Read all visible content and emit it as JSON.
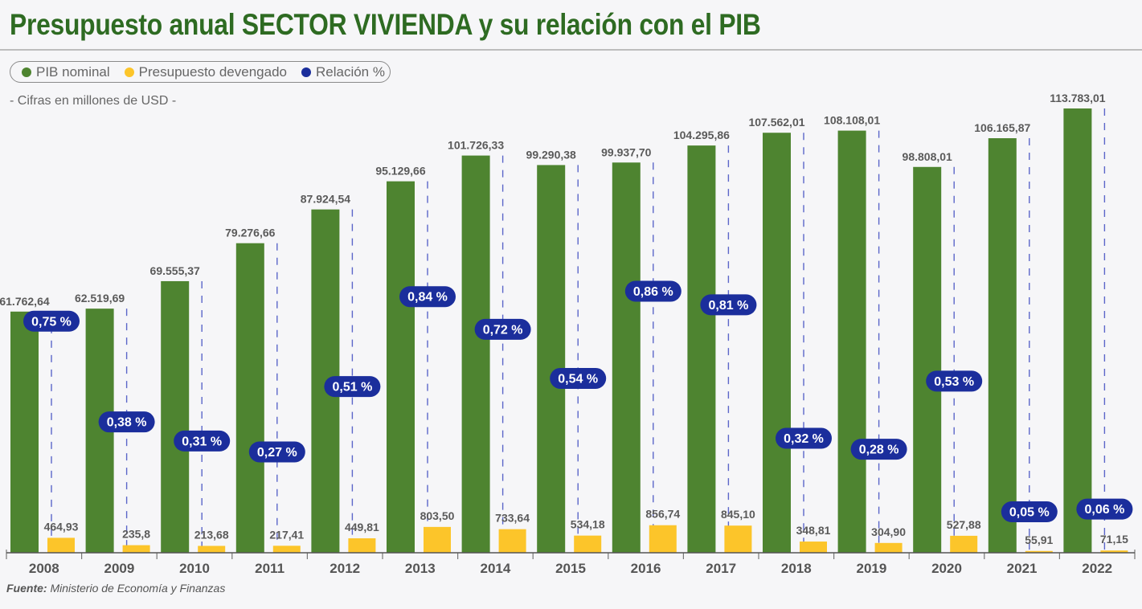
{
  "title": "Presupuesto anual SECTOR VIVIENDA y su relación con el PIB",
  "subtitle": "- Cifras en millones de USD -",
  "source_label": "Fuente:",
  "source_text": "Ministerio de Economía y Finanzas",
  "legend": [
    {
      "label": "PIB nominal",
      "color": "#4e8430"
    },
    {
      "label": "Presupuesto devengado",
      "color": "#fcc52a"
    },
    {
      "label": "Relación %",
      "color": "#1b2e9c"
    }
  ],
  "chart_data": {
    "type": "bar",
    "categories": [
      "2008",
      "2009",
      "2010",
      "2011",
      "2012",
      "2013",
      "2014",
      "2015",
      "2016",
      "2017",
      "2018",
      "2019",
      "2020",
      "2021",
      "2022"
    ],
    "series": [
      {
        "name": "PIB nominal",
        "color": "#4e8430",
        "values": [
          61762.64,
          62519.69,
          69555.37,
          79276.66,
          87924.54,
          95129.66,
          101726.33,
          99290.38,
          99937.7,
          104295.86,
          107562.01,
          108108.01,
          98808.01,
          106165.87,
          113783.01
        ],
        "labels": [
          "61.762,64",
          "62.519,69",
          "69.555,37",
          "79.276,66",
          "87.924,54",
          "95.129,66",
          "101.726,33",
          "99.290,38",
          "99.937,70",
          "104.295,86",
          "107.562,01",
          "108.108,01",
          "98.808,01",
          "106.165,87",
          "113.783,01"
        ]
      },
      {
        "name": "Presupuesto devengado",
        "color": "#fcc52a",
        "values": [
          464.93,
          235.8,
          213.68,
          217.41,
          449.81,
          803.5,
          733.64,
          534.18,
          856.74,
          845.1,
          348.81,
          304.9,
          527.88,
          55.91,
          71.15
        ],
        "labels": [
          "464,93",
          "235,8",
          "213,68",
          "217,41",
          "449,81",
          "803,50",
          "733,64",
          "534,18",
          "856,74",
          "845,10",
          "348,81",
          "304,90",
          "527,88",
          "55,91",
          "71,15"
        ]
      },
      {
        "name": "Relación %",
        "color": "#1b2e9c",
        "values": [
          0.75,
          0.38,
          0.31,
          0.27,
          0.51,
          0.84,
          0.72,
          0.54,
          0.86,
          0.81,
          0.32,
          0.28,
          0.53,
          0.05,
          0.06
        ],
        "labels": [
          "0,75 %",
          "0,38 %",
          "0,31 %",
          "0,27 %",
          "0,51 %",
          "0,84 %",
          "0,72 %",
          "0,54 %",
          "0,86 %",
          "0,81 %",
          "0,32 %",
          "0,28 %",
          "0,53 %",
          "0,05 %",
          "0,06 %"
        ]
      }
    ],
    "ylim": [
      0,
      120000
    ],
    "ratio_range": [
      0,
      1
    ],
    "grid": false
  }
}
